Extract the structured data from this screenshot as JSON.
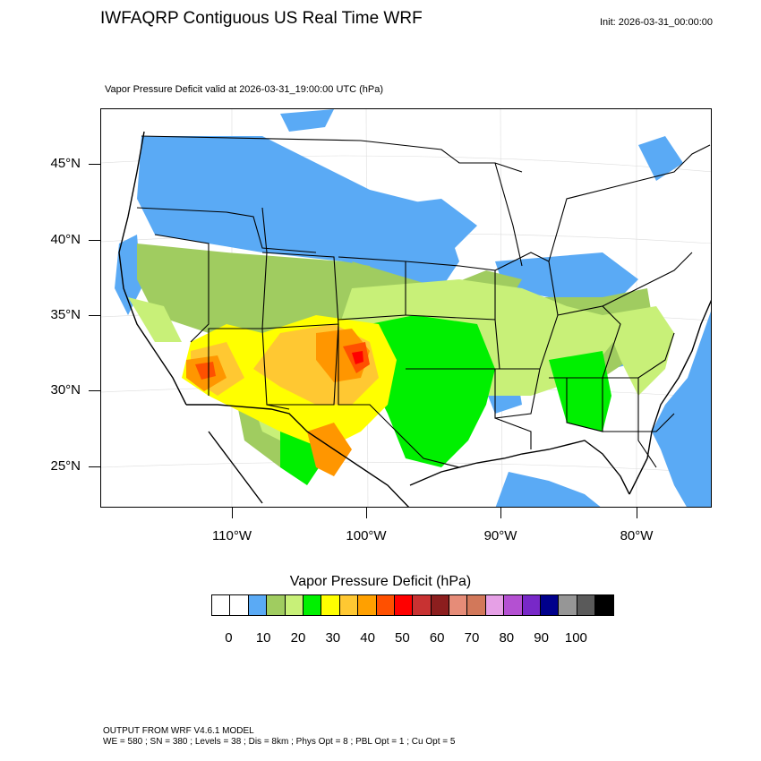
{
  "header": {
    "title": "IWFAQRP Contiguous US Real Time WRF",
    "init": "Init: 2026-03-31_00:00:00",
    "subtitle": "Vapor Pressure Deficit valid at 2026-03-31_19:00:00 UTC   (hPa)"
  },
  "map": {
    "lat_labels": [
      "45°N",
      "40°N",
      "35°N",
      "30°N",
      "25°N"
    ],
    "lon_labels": [
      "110°W",
      "100°W",
      "90°W",
      "80°W"
    ],
    "colors": {
      "ocean_blue": "#5aaaf5",
      "olive": "#a0cc60",
      "light_green": "#c8f078",
      "green": "#00f000",
      "yellow": "#ffff00",
      "gold": "#ffc832",
      "orange": "#ff9600",
      "red_orange": "#ff5000",
      "red": "#ff0000"
    }
  },
  "colorbar": {
    "title": "Vapor Pressure Deficit  (hPa)",
    "colors": [
      "#ffffff",
      "#ffffff",
      "#5aaaf5",
      "#a0cc60",
      "#c8f078",
      "#00f000",
      "#ffff00",
      "#ffc832",
      "#ffa000",
      "#ff5000",
      "#ff0000",
      "#c83232",
      "#8c1e1e",
      "#e68c78",
      "#d2785a",
      "#e6a0e6",
      "#b450d2",
      "#7828c8",
      "#00008c",
      "#969696",
      "#5a5a5a",
      "#000000"
    ],
    "labels": [
      "0",
      "10",
      "20",
      "30",
      "40",
      "50",
      "60",
      "70",
      "80",
      "90",
      "100"
    ]
  },
  "footer": {
    "line1": "OUTPUT FROM WRF V4.6.1 MODEL",
    "line2": "WE = 580 ; SN = 380 ; Levels = 38 ; Dis = 8km ; Phys Opt = 8 ; PBL Opt = 1 ; Cu Opt = 5"
  }
}
